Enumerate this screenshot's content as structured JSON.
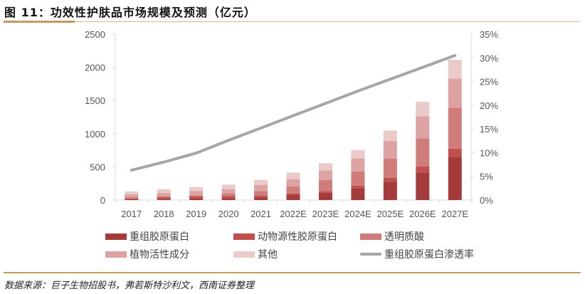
{
  "title": "图 11：功效性护肤品市场规模及预测（亿元）",
  "source": "数据来源：巨子生物招股书，弗若斯特沙利文，西南证券整理",
  "chart_data": {
    "type": "bar",
    "stacked": true,
    "categories": [
      "2017",
      "2018",
      "2019",
      "2020",
      "2021",
      "2022E",
      "2023E",
      "2024E",
      "2025E",
      "2026E",
      "2027E"
    ],
    "series": [
      {
        "name": "重组胶原蛋白",
        "color": "#A33B3A",
        "values": [
          14,
          18,
          25,
          29,
          32,
          75,
          111,
          172,
          276,
          415,
          651
        ]
      },
      {
        "name": "动物源性胶原蛋白",
        "color": "#C0504D",
        "values": [
          11,
          28,
          32,
          32,
          32,
          25,
          25,
          46,
          57,
          89,
          125
        ]
      },
      {
        "name": "透明质酸",
        "color": "#D07C7B",
        "values": [
          21,
          15,
          15,
          36,
          72,
          107,
          164,
          214,
          293,
          426,
          616
        ]
      },
      {
        "name": "植物活性成分",
        "color": "#DDA3A3",
        "values": [
          40,
          46,
          64,
          67,
          93,
          108,
          147,
          194,
          264,
          333,
          439
        ]
      },
      {
        "name": "其他",
        "color": "#EBCACA",
        "values": [
          43,
          57,
          61,
          69,
          75,
          100,
          108,
          128,
          158,
          218,
          283
        ]
      }
    ],
    "line_series": {
      "name": "重组胶原蛋白渗透率",
      "color": "#A6A6A6",
      "axis": "right",
      "values": [
        6.3,
        8.0,
        9.9,
        12.6,
        15.2,
        17.8,
        20.4,
        23.0,
        25.5,
        28.0,
        30.5
      ]
    },
    "y_left": {
      "min": 0,
      "max": 2500,
      "ticks": [
        "0",
        "500",
        "1000",
        "1500",
        "2000",
        "2500"
      ]
    },
    "y_right": {
      "min": 0,
      "max": 35,
      "ticks": [
        "0%",
        "5%",
        "10%",
        "15%",
        "20%",
        "25%",
        "30%",
        "35%"
      ]
    },
    "grid": false,
    "legend_position": "bottom"
  }
}
